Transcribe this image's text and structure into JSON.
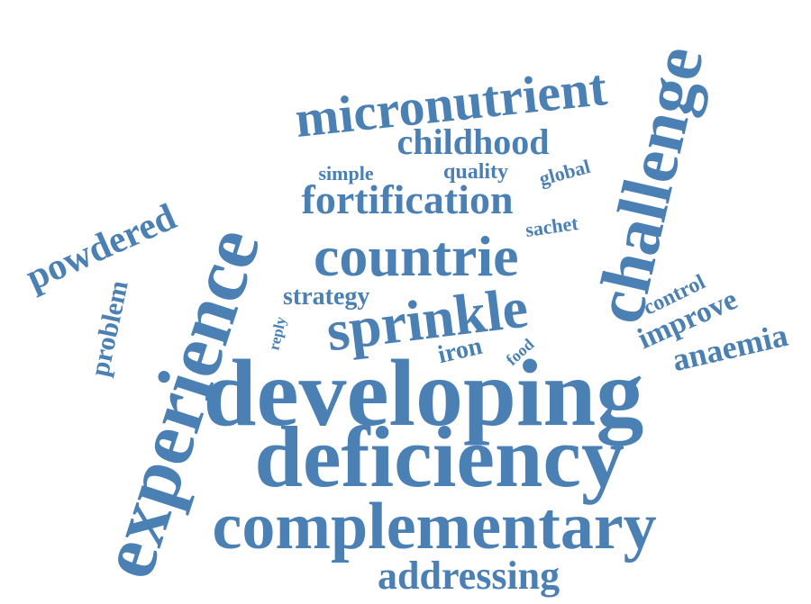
{
  "word_color": "#4a80b4",
  "background": "#ffffff",
  "words": [
    {
      "text": "developing"
    },
    {
      "text": "deficiency"
    },
    {
      "text": "complementary"
    },
    {
      "text": "experience"
    },
    {
      "text": "challenge"
    },
    {
      "text": "micronutrient"
    },
    {
      "text": "countrie"
    },
    {
      "text": "sprinkle"
    },
    {
      "text": "fortification"
    },
    {
      "text": "addressing"
    },
    {
      "text": "childhood"
    },
    {
      "text": "powdered"
    },
    {
      "text": "anaemia"
    },
    {
      "text": "improve"
    },
    {
      "text": "problem"
    },
    {
      "text": "strategy"
    },
    {
      "text": "control"
    },
    {
      "text": "iron"
    },
    {
      "text": "sachet"
    },
    {
      "text": "simple"
    },
    {
      "text": "quality"
    },
    {
      "text": "global"
    },
    {
      "text": "food"
    },
    {
      "text": "reply"
    }
  ]
}
